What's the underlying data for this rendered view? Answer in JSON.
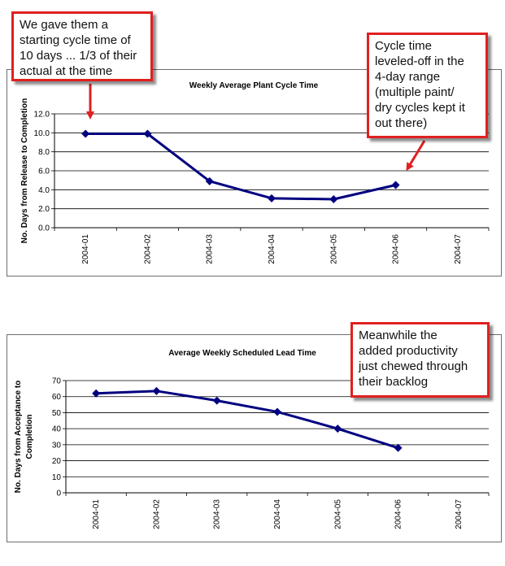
{
  "chart_data": [
    {
      "type": "line",
      "title": "Weekly Average Plant Cycle Time",
      "ylabel": "No. Days from Release to Completion",
      "xlabel": "",
      "categories": [
        "2004-01",
        "2004-02",
        "2004-03",
        "2004-04",
        "2004-05",
        "2004-06",
        "2004-07"
      ],
      "series": [
        {
          "values": [
            9.9,
            9.9,
            4.9,
            3.1,
            3.0,
            4.5,
            null
          ]
        }
      ],
      "ylim": [
        0,
        12
      ],
      "yticks": [
        "0.0",
        "2.0",
        "4.0",
        "6.0",
        "8.0",
        "10.0",
        "12.0"
      ],
      "grid": true,
      "color": "#000080"
    },
    {
      "type": "line",
      "title": "Average Weekly Scheduled Lead Time",
      "ylabel": "No. Days from Acceptance to Completion",
      "xlabel": "",
      "categories": [
        "2004-01",
        "2004-02",
        "2004-03",
        "2004-04",
        "2004-05",
        "2004-06",
        "2004-07"
      ],
      "series": [
        {
          "values": [
            62,
            63.5,
            57.5,
            50.5,
            40,
            28,
            null
          ]
        }
      ],
      "ylim": [
        0,
        70
      ],
      "yticks": [
        "0",
        "10",
        "20",
        "30",
        "40",
        "50",
        "60",
        "70"
      ],
      "grid": true,
      "color": "#000080"
    }
  ],
  "annotations": {
    "callout_1": "We gave them a\nstarting cycle time of\n10 days ... 1/3 of their\nactual at the time",
    "callout_2": "Cycle time\nleveled-off in the\n4-day range\n(multiple paint/\ndry cycles kept it\nout there)",
    "callout_3": "Meanwhile the\nadded productivity\njust chewed through\ntheir backlog"
  },
  "colors": {
    "callout_border": "#e02020",
    "series_line": "#000080",
    "arrow": "#e02020"
  }
}
